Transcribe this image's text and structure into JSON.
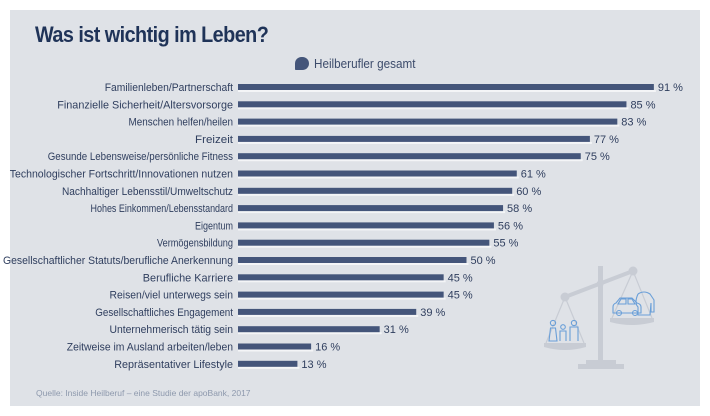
{
  "title": "Was ist wichtig im Leben?",
  "source": "Quelle: Inside Heilberuf – eine Studie der apoBank, 2017",
  "colors": {
    "bar": "#44557a",
    "panel": "#dfe2e7",
    "title": "#1f3358",
    "icon": "#6a9fd8",
    "scale": "#c8ccd4"
  },
  "chart_data": {
    "type": "bar",
    "orientation": "horizontal",
    "title": "Was ist wichtig im Leben?",
    "xlabel": "",
    "ylabel": "",
    "xlim": [
      0,
      100
    ],
    "grid": false,
    "legend": {
      "position": "top-center",
      "entries": [
        "Heilberufler gesamt"
      ]
    },
    "value_suffix": " %",
    "categories": [
      "Familienleben/Partnerschaft",
      "Finanzielle Sicherheit/Altersvorsorge",
      "Menschen helfen/heilen",
      "Freizeit",
      "Gesunde Lebensweise/persönliche Fitness",
      "Technologischer Fortschritt/Innovationen nutzen",
      "Nachhaltiger Lebensstil/Umweltschutz",
      "Hohes Einkommen/Lebensstandard",
      "Eigentum",
      "Vermögensbildung",
      "Gesellschaftlicher Statuts/berufliche Anerkennung",
      "Berufliche Karriere",
      "Reisen/viel unterwegs sein",
      "Gesellschaftliches Engagement",
      "Unternehmerisch tätig sein",
      "Zeitweise im Ausland arbeiten/leben",
      "Repräsentativer Lifestyle"
    ],
    "series": [
      {
        "name": "Heilberufler gesamt",
        "values": [
          91,
          85,
          83,
          77,
          75,
          61,
          60,
          58,
          56,
          55,
          50,
          45,
          45,
          39,
          31,
          16,
          13
        ]
      }
    ]
  },
  "illustration": {
    "name": "scale-with-family-and-car",
    "icons": [
      "family-icon",
      "car-icon",
      "shirt-icon"
    ]
  }
}
